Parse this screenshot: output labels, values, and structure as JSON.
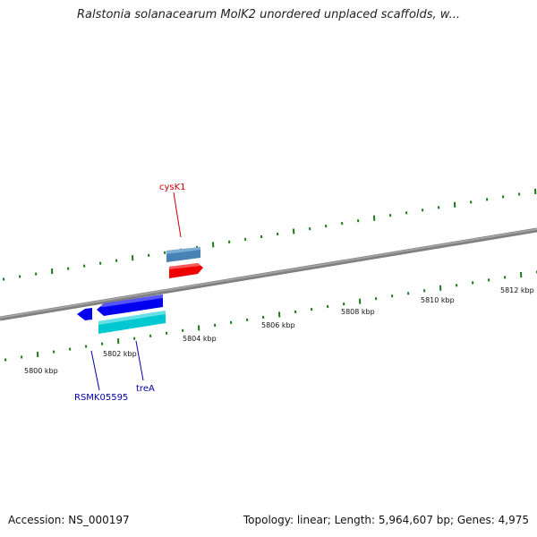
{
  "title": "Ralstonia solanacearum MolK2 unordered unplaced scaffolds, w...",
  "accession_text": "Accession: NS_000197",
  "summary_text": "Topology: linear; Length: 5,964,607 bp; Genes: 4,975",
  "ruler": {
    "labels": [
      "5800 kbp",
      "5802 kbp",
      "5804 kbp",
      "5806 kbp",
      "5808 kbp",
      "5810 kbp",
      "5812 kbp"
    ]
  },
  "genes": [
    {
      "name": "cysK1",
      "color": "#cc0000"
    },
    {
      "name": "RSMK05595",
      "color": "#0000aa"
    },
    {
      "name": "treA",
      "color": "#0000aa"
    }
  ],
  "colors": {
    "ticks": "#1a7a1a",
    "backbone": "#888888",
    "forward_gene": "#ff0000",
    "forward_gene_alt": "#4682b4",
    "reverse_gene": "#0000ee",
    "reverse_gene_alt": "#00cccc"
  }
}
